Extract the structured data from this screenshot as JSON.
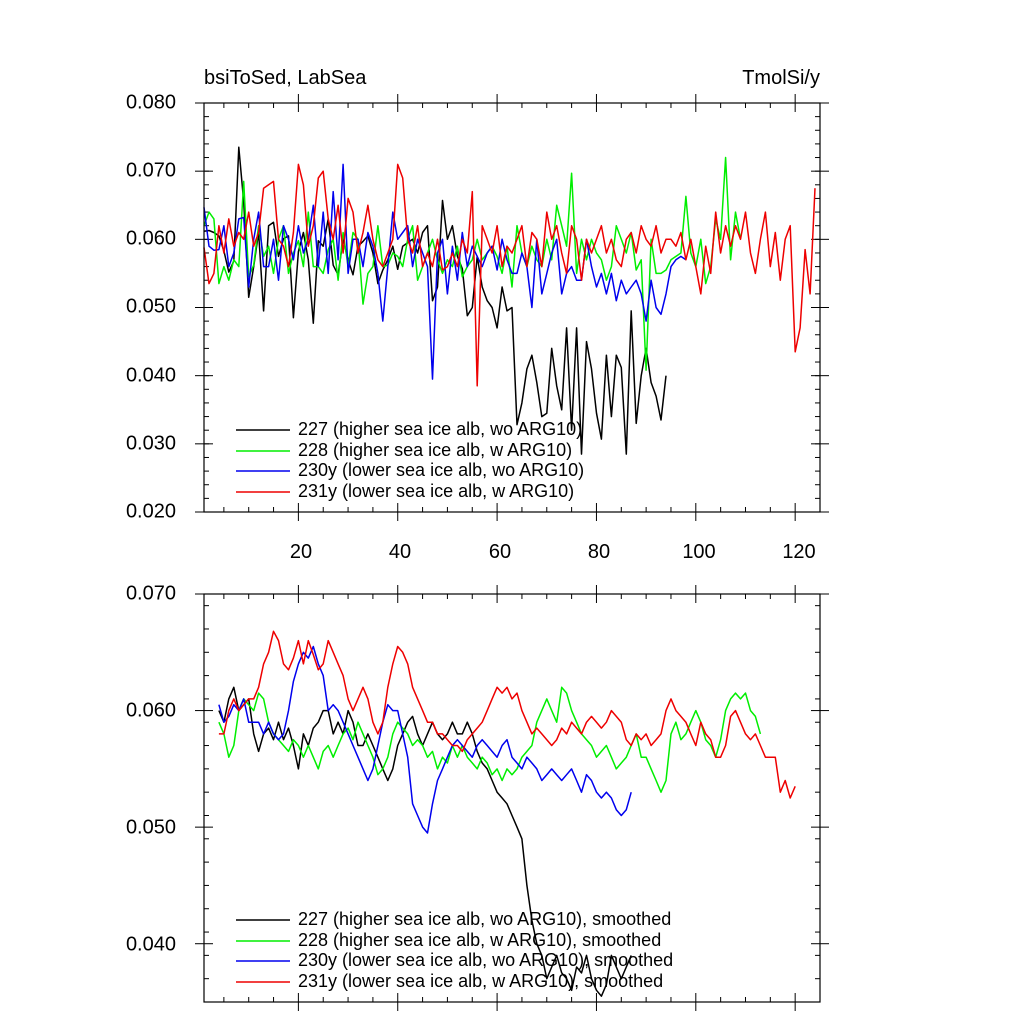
{
  "chart_data": [
    {
      "type": "line",
      "title": "bsiToSed, LabSea",
      "units": "TmolSi/y",
      "xlim": [
        1,
        125
      ],
      "ylim": [
        0.02,
        0.08
      ],
      "xticks": [
        20,
        40,
        60,
        80,
        100,
        120
      ],
      "xtick_labels": [
        "20",
        "40",
        "60",
        "80",
        "100",
        "120"
      ],
      "yticks": [
        0.02,
        0.03,
        0.04,
        0.05,
        0.06,
        0.07,
        0.08
      ],
      "ytick_labels": [
        "0.020",
        "0.030",
        "0.040",
        "0.050",
        "0.060",
        "0.070",
        "0.080"
      ],
      "legend_position": "lower-left",
      "series": [
        {
          "name": "227 (higher sea ice alb, wo ARG10)",
          "color": "#000000",
          "x_start": 1,
          "values": [
            0.0612,
            0.0613,
            0.061,
            0.0605,
            0.0583,
            0.0552,
            0.0568,
            0.0735,
            0.0655,
            0.0515,
            0.056,
            0.061,
            0.0495,
            0.062,
            0.0625,
            0.0575,
            0.0601,
            0.0605,
            0.0485,
            0.0582,
            0.061,
            0.057,
            0.0477,
            0.0598,
            0.059,
            0.063,
            0.0562,
            0.0548,
            0.06,
            0.057,
            0.0548,
            0.059,
            0.0597,
            0.0605,
            0.058,
            0.0535,
            0.0555,
            0.057,
            0.059,
            0.0556,
            0.059,
            0.0595,
            0.06,
            0.058,
            0.061,
            0.062,
            0.051,
            0.053,
            0.0657,
            0.06,
            0.062,
            0.0575,
            0.0557,
            0.0488,
            0.05,
            0.0575,
            0.053,
            0.051,
            0.05,
            0.047,
            0.053,
            0.0495,
            0.05,
            0.0328,
            0.036,
            0.041,
            0.043,
            0.039,
            0.034,
            0.0345,
            0.044,
            0.0385,
            0.035,
            0.047,
            0.032,
            0.047,
            0.0285,
            0.045,
            0.041,
            0.0345,
            0.0307,
            0.043,
            0.034,
            0.043,
            0.0412,
            0.0285,
            0.0495,
            0.033,
            0.04,
            0.044,
            0.039,
            0.037,
            0.0335,
            0.04
          ]
        },
        {
          "name": "228 (higher sea ice alb, w ARG10)",
          "color": "#00ee00",
          "x_start": 1,
          "values": [
            0.062,
            0.064,
            0.063,
            0.0535,
            0.056,
            0.054,
            0.057,
            0.056,
            0.0685,
            0.0545,
            0.0562,
            0.062,
            0.0575,
            0.059,
            0.055,
            0.06,
            0.062,
            0.055,
            0.058,
            0.0598,
            0.056,
            0.064,
            0.056,
            0.056,
            0.055,
            0.0585,
            0.06,
            0.054,
            0.061,
            0.056,
            0.061,
            0.06,
            0.0505,
            0.055,
            0.056,
            0.062,
            0.056,
            0.0562,
            0.058,
            0.0575,
            0.056,
            0.06,
            0.062,
            0.054,
            0.056,
            0.058,
            0.06,
            0.057,
            0.055,
            0.057,
            0.056,
            0.059,
            0.0545,
            0.056,
            0.057,
            0.06,
            0.057,
            0.058,
            0.059,
            0.0575,
            0.055,
            0.059,
            0.053,
            0.062,
            0.058,
            0.056,
            0.059,
            0.057,
            0.056,
            0.06,
            0.057,
            0.065,
            0.062,
            0.059,
            0.0697,
            0.055,
            0.06,
            0.057,
            0.06,
            0.058,
            0.057,
            0.054,
            0.056,
            0.062,
            0.06,
            0.058,
            0.061,
            0.0555,
            0.057,
            0.0408,
            0.06,
            0.055,
            0.055,
            0.0555,
            0.057,
            0.0575,
            0.058,
            0.0663,
            0.058,
            0.056,
            0.06,
            0.0535,
            0.056,
            0.063,
            0.06,
            0.072,
            0.057,
            0.064,
            0.06
          ]
        },
        {
          "name": "230y (lower sea ice alb, wo ARG10)",
          "color": "#0000ee",
          "x_start": 1,
          "values": [
            0.0647,
            0.059,
            0.0584,
            0.0585,
            0.062,
            0.056,
            0.058,
            0.063,
            0.0632,
            0.053,
            0.06,
            0.064,
            0.056,
            0.056,
            0.06,
            0.054,
            0.062,
            0.06,
            0.057,
            0.062,
            0.058,
            0.06,
            0.065,
            0.056,
            0.064,
            0.055,
            0.067,
            0.057,
            0.071,
            0.055,
            0.06,
            0.06,
            0.056,
            0.061,
            0.059,
            0.055,
            0.048,
            0.056,
            0.064,
            0.06,
            0.061,
            0.062,
            0.056,
            0.06,
            0.058,
            0.056,
            0.0395,
            0.058,
            0.06,
            0.052,
            0.059,
            0.054,
            0.061,
            0.056,
            0.059,
            0.0575,
            0.056,
            0.058,
            0.059,
            0.0555,
            0.06,
            0.057,
            0.055,
            0.055,
            0.058,
            0.056,
            0.05,
            0.06,
            0.052,
            0.055,
            0.058,
            0.06,
            0.052,
            0.055,
            0.056,
            0.054,
            0.054,
            0.06,
            0.056,
            0.053,
            0.055,
            0.052,
            0.055,
            0.051,
            0.054,
            0.052,
            0.053,
            0.054,
            0.052,
            0.048,
            0.054,
            0.05,
            0.049,
            0.052,
            0.056,
            0.057,
            0.0575,
            0.057
          ]
        },
        {
          "name": "231y (lower sea ice alb, w ARG10)",
          "color": "#ee0000",
          "x_start": 1,
          "values": [
            0.0588,
            0.0535,
            0.055,
            0.062,
            0.058,
            0.063,
            0.059,
            0.061,
            0.06,
            0.064,
            0.059,
            0.061,
            0.0675,
            0.068,
            0.0685,
            0.06,
            0.059,
            0.056,
            0.061,
            0.071,
            0.068,
            0.059,
            0.062,
            0.069,
            0.07,
            0.063,
            0.06,
            0.065,
            0.058,
            0.066,
            0.064,
            0.058,
            0.061,
            0.065,
            0.06,
            0.057,
            0.056,
            0.058,
            0.06,
            0.071,
            0.069,
            0.06,
            0.058,
            0.062,
            0.056,
            0.058,
            0.056,
            0.06,
            0.0555,
            0.056,
            0.058,
            0.056,
            0.06,
            0.058,
            0.067,
            0.0385,
            0.062,
            0.06,
            0.058,
            0.062,
            0.056,
            0.059,
            0.058,
            0.06,
            0.062,
            0.056,
            0.061,
            0.06,
            0.056,
            0.064,
            0.06,
            0.062,
            0.058,
            0.055,
            0.062,
            0.06,
            0.054,
            0.06,
            0.058,
            0.06,
            0.062,
            0.058,
            0.06,
            0.057,
            0.056,
            0.06,
            0.061,
            0.058,
            0.062,
            0.06,
            0.059,
            0.062,
            0.058,
            0.06,
            0.06,
            0.059,
            0.061,
            0.057,
            0.06,
            0.056,
            0.052,
            0.059,
            0.055,
            0.064,
            0.058,
            0.062,
            0.059,
            0.062,
            0.06,
            0.064,
            0.058,
            0.055,
            0.06,
            0.064,
            0.056,
            0.061,
            0.054,
            0.06,
            0.062,
            0.0435,
            0.047,
            0.0585,
            0.052,
            0.0675
          ]
        }
      ]
    },
    {
      "type": "line",
      "title": "",
      "xlim": [
        1,
        125
      ],
      "ylim": [
        0.035,
        0.07
      ],
      "xticks": [
        20,
        40,
        60,
        80,
        100,
        120
      ],
      "yticks": [
        0.04,
        0.05,
        0.06,
        0.07
      ],
      "ytick_labels": [
        "0.040",
        "0.050",
        "0.060",
        "0.070"
      ],
      "legend_position": "lower-left",
      "series": [
        {
          "name": "227 (higher sea ice alb, wo ARG10), smoothed",
          "color": "#000000",
          "x_start": 4,
          "values": [
            0.06,
            0.059,
            0.061,
            0.062,
            0.06,
            0.0605,
            0.061,
            0.058,
            0.0565,
            0.058,
            0.0585,
            0.0575,
            0.059,
            0.0575,
            0.0585,
            0.057,
            0.055,
            0.058,
            0.057,
            0.0585,
            0.059,
            0.06,
            0.06,
            0.058,
            0.059,
            0.058,
            0.06,
            0.059,
            0.057,
            0.057,
            0.058,
            0.057,
            0.056,
            0.055,
            0.054,
            0.055,
            0.057,
            0.058,
            0.059,
            0.0595,
            0.058,
            0.057,
            0.058,
            0.059,
            0.058,
            0.0575,
            0.058,
            0.059,
            0.058,
            0.058,
            0.059,
            0.058,
            0.0565,
            0.0555,
            0.055,
            0.054,
            0.053,
            0.0525,
            0.052,
            0.051,
            0.05,
            0.049,
            0.045,
            0.042,
            0.04,
            0.039,
            0.037,
            0.038,
            0.039,
            0.0375,
            0.037,
            0.036,
            0.038,
            0.0375,
            0.039,
            0.037,
            0.036,
            0.0355,
            0.0365,
            0.039,
            0.038,
            0.037,
            0.038,
            0.039
          ]
        },
        {
          "name": "228 (higher sea ice alb, w ARG10), smoothed",
          "color": "#00ee00",
          "x_start": 4,
          "values": [
            0.059,
            0.058,
            0.056,
            0.057,
            0.06,
            0.061,
            0.0605,
            0.06,
            0.0615,
            0.061,
            0.059,
            0.058,
            0.0575,
            0.057,
            0.0565,
            0.0575,
            0.057,
            0.056,
            0.057,
            0.056,
            0.055,
            0.0565,
            0.057,
            0.056,
            0.057,
            0.058,
            0.0585,
            0.0575,
            0.059,
            0.058,
            0.057,
            0.056,
            0.0545,
            0.055,
            0.056,
            0.058,
            0.059,
            0.0585,
            0.058,
            0.057,
            0.0575,
            0.057,
            0.056,
            0.0565,
            0.055,
            0.056,
            0.0555,
            0.057,
            0.056,
            0.057,
            0.056,
            0.0555,
            0.055,
            0.056,
            0.0555,
            0.0545,
            0.055,
            0.054,
            0.055,
            0.0545,
            0.055,
            0.056,
            0.0565,
            0.057,
            0.059,
            0.06,
            0.061,
            0.06,
            0.059,
            0.062,
            0.0615,
            0.06,
            0.059,
            0.058,
            0.0575,
            0.057,
            0.056,
            0.0565,
            0.057,
            0.056,
            0.055,
            0.0555,
            0.056,
            0.057,
            0.058,
            0.056,
            0.056,
            0.055,
            0.054,
            0.053,
            0.054,
            0.058,
            0.059,
            0.0575,
            0.058,
            0.059,
            0.06,
            0.059,
            0.0575,
            0.057,
            0.056,
            0.0575,
            0.06,
            0.061,
            0.0615,
            0.061,
            0.0615,
            0.06,
            0.0595,
            0.058
          ]
        },
        {
          "name": "230y (lower sea ice alb, wo ARG10), smoothed",
          "color": "#0000ee",
          "x_start": 4,
          "values": [
            0.0605,
            0.059,
            0.0595,
            0.0605,
            0.06,
            0.061,
            0.059,
            0.059,
            0.059,
            0.058,
            0.059,
            0.058,
            0.0575,
            0.058,
            0.06,
            0.0625,
            0.064,
            0.065,
            0.0645,
            0.0655,
            0.064,
            0.063,
            0.06,
            0.0605,
            0.06,
            0.059,
            0.058,
            0.057,
            0.056,
            0.055,
            0.054,
            0.055,
            0.057,
            0.059,
            0.0605,
            0.06,
            0.06,
            0.058,
            0.056,
            0.052,
            0.051,
            0.05,
            0.0495,
            0.052,
            0.054,
            0.055,
            0.056,
            0.057,
            0.0575,
            0.057,
            0.0565,
            0.056,
            0.057,
            0.0575,
            0.057,
            0.0565,
            0.056,
            0.057,
            0.0575,
            0.056,
            0.0555,
            0.055,
            0.056,
            0.0555,
            0.055,
            0.054,
            0.0545,
            0.055,
            0.0545,
            0.054,
            0.0545,
            0.055,
            0.054,
            0.053,
            0.0545,
            0.054,
            0.053,
            0.0525,
            0.053,
            0.0525,
            0.0515,
            0.051,
            0.0515,
            0.053
          ]
        },
        {
          "name": "231y (lower sea ice alb, w ARG10), smoothed",
          "color": "#ee0000",
          "x_start": 4,
          "values": [
            0.058,
            0.058,
            0.06,
            0.061,
            0.06,
            0.0605,
            0.061,
            0.061,
            0.062,
            0.064,
            0.065,
            0.0668,
            0.066,
            0.064,
            0.0635,
            0.0645,
            0.066,
            0.064,
            0.066,
            0.0648,
            0.0635,
            0.064,
            0.066,
            0.065,
            0.064,
            0.063,
            0.061,
            0.06,
            0.061,
            0.062,
            0.061,
            0.059,
            0.058,
            0.059,
            0.062,
            0.064,
            0.0655,
            0.065,
            0.064,
            0.062,
            0.061,
            0.06,
            0.059,
            0.059,
            0.058,
            0.058,
            0.0575,
            0.057,
            0.057,
            0.0565,
            0.0575,
            0.058,
            0.0585,
            0.059,
            0.06,
            0.061,
            0.062,
            0.0615,
            0.062,
            0.061,
            0.0615,
            0.06,
            0.059,
            0.058,
            0.0585,
            0.058,
            0.0575,
            0.057,
            0.0575,
            0.0585,
            0.058,
            0.059,
            0.0585,
            0.058,
            0.059,
            0.0595,
            0.059,
            0.0585,
            0.059,
            0.06,
            0.0595,
            0.059,
            0.0575,
            0.057,
            0.058,
            0.0575,
            0.058,
            0.057,
            0.0575,
            0.058,
            0.06,
            0.061,
            0.06,
            0.0595,
            0.059,
            0.058,
            0.057,
            0.059,
            0.058,
            0.0575,
            0.056,
            0.056,
            0.057,
            0.0595,
            0.06,
            0.059,
            0.058,
            0.0575,
            0.058,
            0.057,
            0.056,
            0.056,
            0.056,
            0.053,
            0.054,
            0.0525,
            0.0535
          ]
        }
      ]
    }
  ]
}
